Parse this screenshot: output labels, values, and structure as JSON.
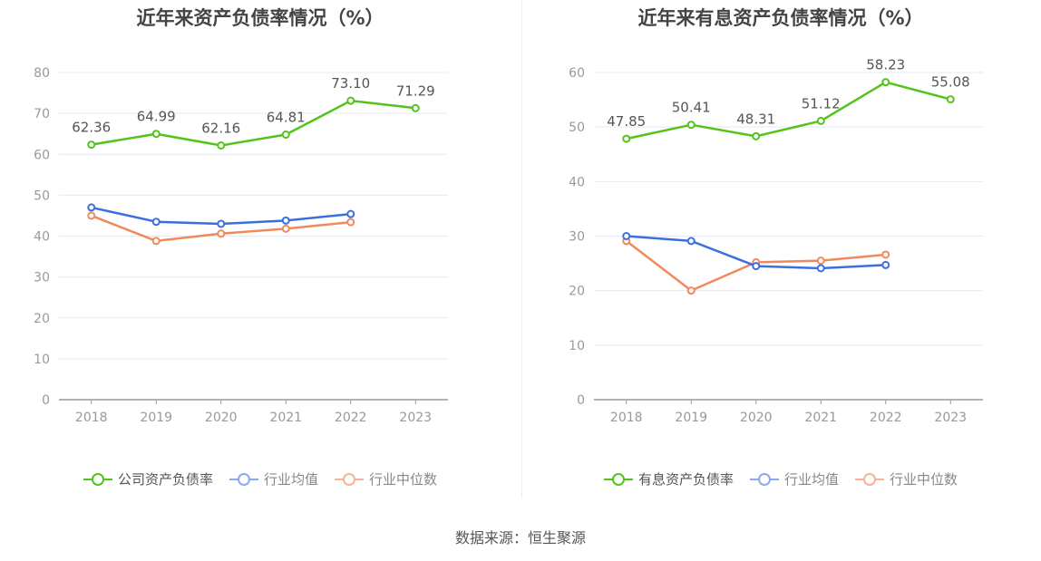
{
  "source_text": "数据来源：恒生聚源",
  "chart_data": [
    {
      "type": "line",
      "title": "近年来资产负债率情况（%）",
      "categories": [
        "2018",
        "2019",
        "2020",
        "2021",
        "2022",
        "2023"
      ],
      "ylim": [
        0,
        80
      ],
      "yticks": [
        "0",
        "10",
        "20",
        "30",
        "40",
        "50",
        "60",
        "70",
        "80"
      ],
      "grid": true,
      "legend_position": "bottom",
      "series": [
        {
          "name": "公司资产负债率",
          "color": "#52c41a",
          "values": [
            62.36,
            64.99,
            62.16,
            64.81,
            73.1,
            71.29
          ],
          "labels": [
            "62.36",
            "64.99",
            "62.16",
            "64.81",
            "73.10",
            "71.29"
          ]
        },
        {
          "name": "行业均值",
          "color": "#3b6fe0",
          "legend_color": "#8aa9ef",
          "values": [
            47.0,
            43.5,
            43.0,
            43.8,
            45.4,
            null
          ]
        },
        {
          "name": "行业中位数",
          "color": "#f08a5d",
          "legend_color": "#f5b294",
          "values": [
            45.0,
            38.8,
            40.6,
            41.8,
            43.4,
            null
          ]
        }
      ]
    },
    {
      "type": "line",
      "title": "近年来有息资产负债率情况（%）",
      "categories": [
        "2018",
        "2019",
        "2020",
        "2021",
        "2022",
        "2023"
      ],
      "ylim": [
        0,
        60
      ],
      "yticks": [
        "0",
        "10",
        "20",
        "30",
        "40",
        "50",
        "60"
      ],
      "grid": true,
      "legend_position": "bottom",
      "series": [
        {
          "name": "有息资产负债率",
          "color": "#52c41a",
          "values": [
            47.85,
            50.41,
            48.31,
            51.12,
            58.23,
            55.08
          ],
          "labels": [
            "47.85",
            "50.41",
            "48.31",
            "51.12",
            "58.23",
            "55.08"
          ]
        },
        {
          "name": "行业均值",
          "color": "#3b6fe0",
          "legend_color": "#8aa9ef",
          "values": [
            30.0,
            29.1,
            24.5,
            24.1,
            24.7,
            null
          ]
        },
        {
          "name": "行业中位数",
          "color": "#f08a5d",
          "legend_color": "#f5b294",
          "values": [
            29.1,
            20.0,
            25.2,
            25.5,
            26.6,
            null
          ]
        }
      ]
    }
  ]
}
